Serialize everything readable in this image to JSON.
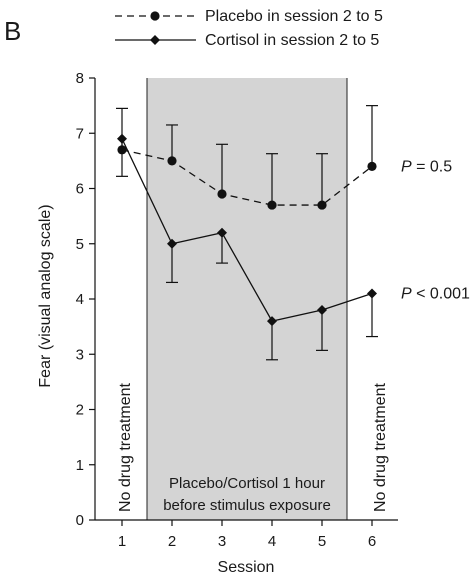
{
  "panel_label": "B",
  "chart_data": {
    "type": "line",
    "xlabel": "Session",
    "ylabel": "Fear (visual analog scale)",
    "x": [
      1,
      2,
      3,
      4,
      5,
      6
    ],
    "xticks": [
      "1",
      "2",
      "3",
      "4",
      "5",
      "6"
    ],
    "ylim": [
      0,
      8
    ],
    "yticks": [
      "0",
      "1",
      "2",
      "3",
      "4",
      "5",
      "6",
      "7",
      "8"
    ],
    "legend_position": "top",
    "series": [
      {
        "name": "Placebo in session 2 to 5",
        "marker": "circle",
        "line_style": "dashed",
        "values": [
          6.7,
          6.5,
          5.9,
          5.7,
          5.7,
          6.4
        ],
        "error_upper": [
          7.45,
          7.15,
          6.8,
          6.63,
          6.63,
          7.5
        ],
        "annotation": {
          "text_italic": "P",
          "text_rest": " = 0.5"
        }
      },
      {
        "name": "Cortisol in session 2 to 5",
        "marker": "diamond",
        "line_style": "solid",
        "values": [
          6.9,
          5.0,
          5.2,
          3.6,
          3.8,
          4.1
        ],
        "error_lower": [
          6.22,
          4.3,
          4.65,
          2.9,
          3.07,
          3.32
        ],
        "annotation": {
          "text_italic": "P",
          "text_rest": " < 0.001"
        }
      }
    ],
    "shaded_region": {
      "x_from": 1.5,
      "x_to": 5.5,
      "color": "#d4d4d4",
      "label_lines": [
        "Placebo/Cortisol 1 hour",
        "before stimulus exposure"
      ]
    },
    "side_labels": {
      "left": "No drug treatment",
      "right": "No drug treatment"
    }
  }
}
